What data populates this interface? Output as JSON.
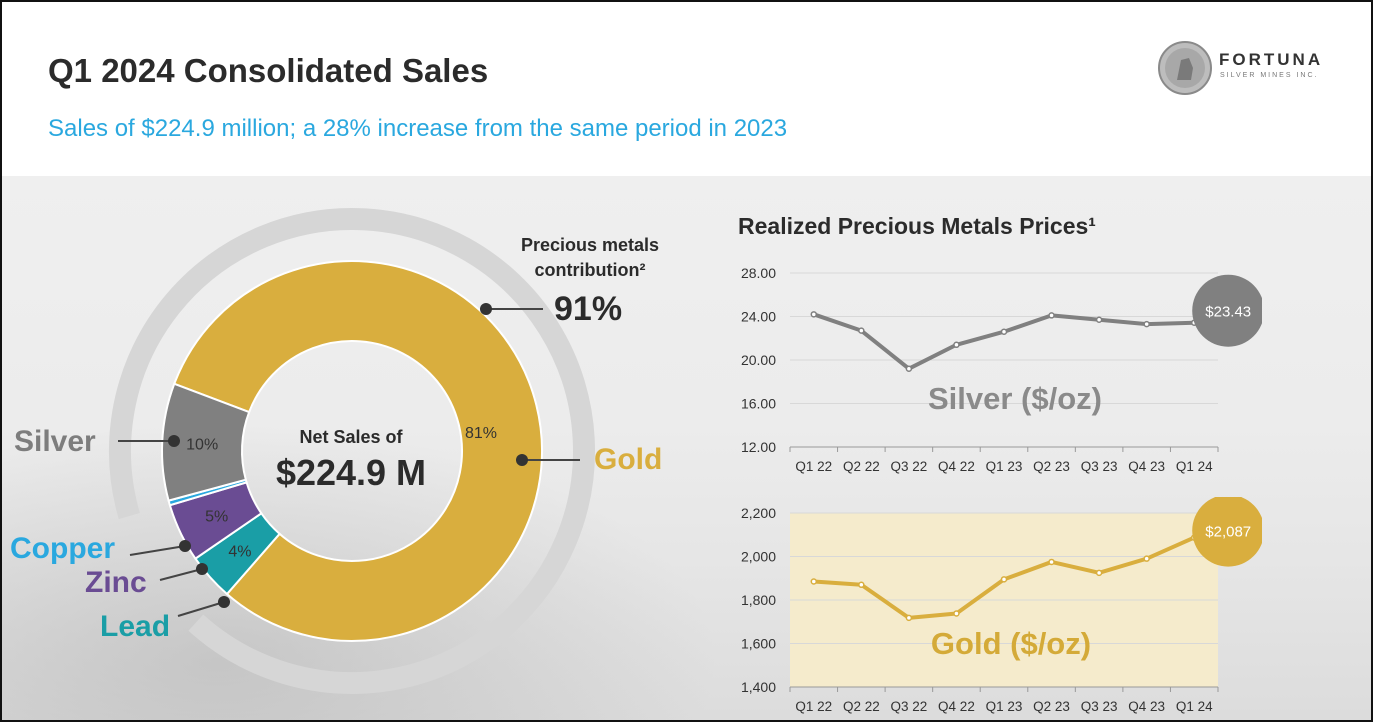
{
  "header": {
    "title": "Q1 2024 Consolidated Sales",
    "subtitle": "Sales of $224.9 million; a 28% increase from the same period in 2023",
    "logo_name": "FORTUNA",
    "logo_tagline": "SILVER MINES INC."
  },
  "donut": {
    "center_label": "Net Sales of",
    "center_value": "$224.9 M",
    "precious_label_line1": "Precious metals",
    "precious_label_line2": "contribution²",
    "precious_value": "91%"
  },
  "prices_panel": {
    "title": "Realized Precious Metals Prices¹"
  },
  "colors": {
    "gold": "#d9ae3e",
    "silver": "#808080",
    "copper": "#2aa8df",
    "zinc": "#6a4c93",
    "lead": "#1a9ea6"
  },
  "chart_data": [
    {
      "type": "pie",
      "slices": [
        {
          "name": "Gold",
          "value": 81,
          "label": "81%",
          "color": "#d9ae3e"
        },
        {
          "name": "Lead",
          "value": 4,
          "label": "4%",
          "color": "#1a9ea6"
        },
        {
          "name": "Zinc",
          "value": 5,
          "label": "5%",
          "color": "#6a4c93"
        },
        {
          "name": "Copper",
          "value": 0.4,
          "label": "",
          "color": "#2aa8df"
        },
        {
          "name": "Silver",
          "value": 10,
          "label": "10%",
          "color": "#808080"
        }
      ]
    },
    {
      "type": "line",
      "categories": [
        "Q1 22",
        "Q2 22",
        "Q3 22",
        "Q4 22",
        "Q1 23",
        "Q2 23",
        "Q3 23",
        "Q4 23",
        "Q1 24"
      ],
      "series": [
        {
          "name": "Silver ($/oz)",
          "values": [
            24.2,
            22.7,
            19.2,
            21.4,
            22.6,
            24.1,
            23.7,
            23.3,
            23.43
          ],
          "color": "#808080"
        }
      ],
      "yticks": [
        "28.00",
        "24.00",
        "20.00",
        "16.00",
        "12.00"
      ],
      "ylim": [
        12,
        28
      ],
      "end_label": "$23.43",
      "overlay_label": "Silver ($/oz)"
    },
    {
      "type": "line",
      "categories": [
        "Q1 22",
        "Q2 22",
        "Q3 22",
        "Q4 22",
        "Q1 23",
        "Q2 23",
        "Q3 23",
        "Q4 23",
        "Q1 24"
      ],
      "series": [
        {
          "name": "Gold ($/oz)",
          "values": [
            1885,
            1870,
            1718,
            1738,
            1895,
            1975,
            1925,
            1990,
            2087
          ],
          "color": "#d9ae3e"
        }
      ],
      "yticks": [
        "2,200",
        "2,000",
        "1,800",
        "1,600",
        "1,400"
      ],
      "ylim": [
        1400,
        2200
      ],
      "end_label": "$2,087",
      "overlay_label": "Gold ($/oz)"
    }
  ]
}
